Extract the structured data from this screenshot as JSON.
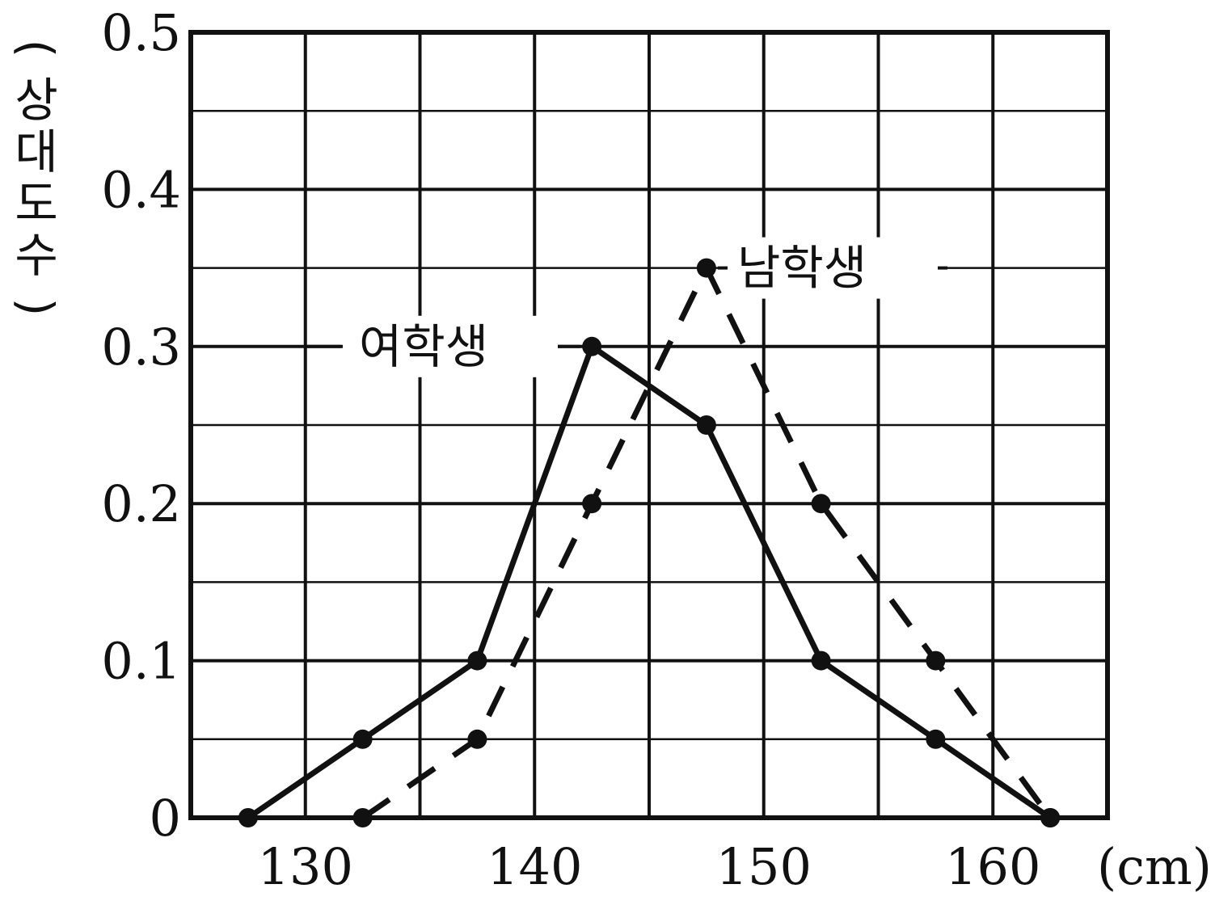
{
  "chart_data": {
    "type": "line",
    "title": "",
    "xlabel": "(cm)",
    "ylabel": "(상대도수)",
    "xlim": [
      125,
      165
    ],
    "ylim": [
      0,
      0.5
    ],
    "x_ticks": [
      130,
      140,
      150,
      160
    ],
    "x_tick_labels": [
      "130",
      "140",
      "150",
      "160"
    ],
    "y_ticks": [
      0,
      0.1,
      0.2,
      0.3,
      0.4,
      0.5
    ],
    "y_tick_labels": [
      "0",
      "0.1",
      "0.2",
      "0.3",
      "0.4",
      "0.5"
    ],
    "grid": true,
    "series": [
      {
        "name": "여학생",
        "line_style": "solid",
        "color": "#111111",
        "x": [
          127.5,
          132.5,
          137.5,
          142.5,
          147.5,
          152.5,
          157.5,
          162.5
        ],
        "y": [
          0,
          0.05,
          0.1,
          0.3,
          0.25,
          0.1,
          0.05,
          0
        ]
      },
      {
        "name": "남학생",
        "line_style": "dashed",
        "color": "#111111",
        "x": [
          132.5,
          137.5,
          142.5,
          147.5,
          152.5,
          157.5,
          162.5
        ],
        "y": [
          0,
          0.05,
          0.2,
          0.35,
          0.2,
          0.1,
          0
        ]
      }
    ]
  }
}
